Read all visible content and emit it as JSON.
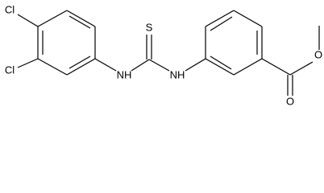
{
  "atoms": [
    "Cl",
    "Cl",
    "NH",
    "NH",
    "S",
    "O",
    "O"
  ]
}
